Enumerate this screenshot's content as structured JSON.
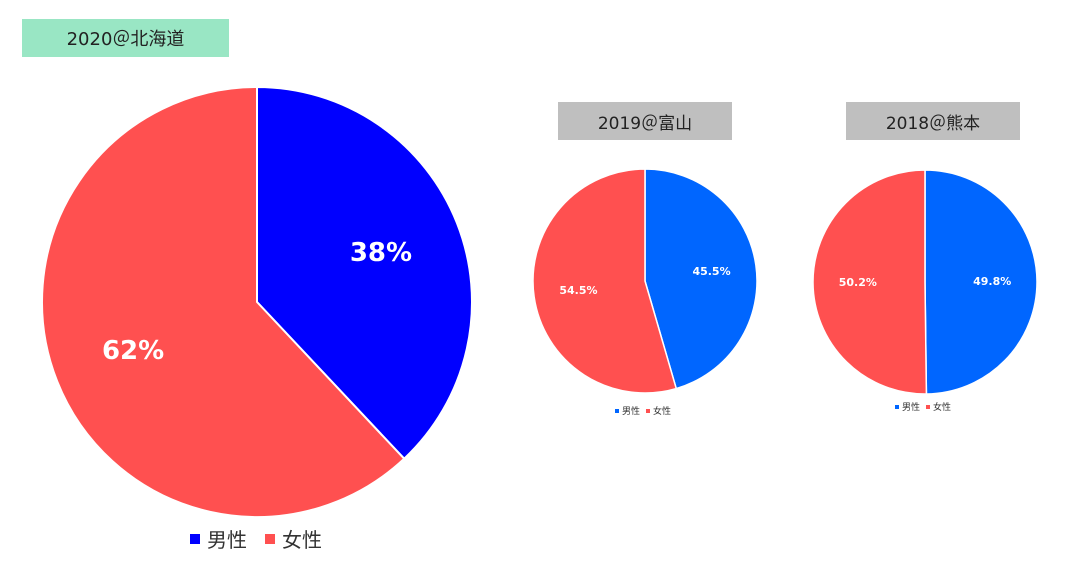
{
  "chart_data": [
    {
      "type": "pie",
      "title": "2020＠北海道",
      "title_bg": "#99e6c4",
      "categories": [
        "男性",
        "女性"
      ],
      "values": [
        38,
        62
      ],
      "labels": [
        "38%",
        "62%"
      ],
      "colors": [
        "#0000ff",
        "#ff5050"
      ],
      "legend": "bottom"
    },
    {
      "type": "pie",
      "title": "2019＠富山",
      "title_bg": "#bfbfbf",
      "categories": [
        "男性",
        "女性"
      ],
      "values": [
        45.5,
        54.5
      ],
      "labels": [
        "45.5%",
        "54.5%"
      ],
      "colors": [
        "#0066ff",
        "#ff5050"
      ],
      "legend": "bottom"
    },
    {
      "type": "pie",
      "title": "2018＠熊本",
      "title_bg": "#bfbfbf",
      "categories": [
        "男性",
        "女性"
      ],
      "values": [
        49.8,
        50.2
      ],
      "labels": [
        "49.8%",
        "50.2%"
      ],
      "colors": [
        "#0066ff",
        "#ff5050"
      ],
      "legend": "bottom"
    }
  ]
}
